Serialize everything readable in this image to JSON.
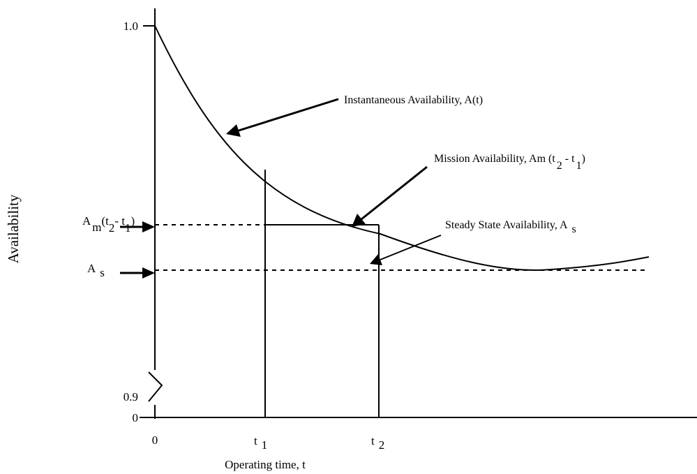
{
  "chart_data": {
    "type": "line",
    "title": "",
    "xlabel": "Operating time, t",
    "ylabel": "Availability",
    "y_ticks": {
      "top": "1.0",
      "mid": "0.9",
      "bottom": "0"
    },
    "x_ticks": {
      "origin": "0",
      "t1": {
        "base": "t",
        "sub": "1"
      },
      "t2": {
        "base": "t",
        "sub": "2"
      }
    },
    "left_markers": {
      "mission": {
        "A": "A",
        "m": "m",
        "open": "(t",
        "two": "2",
        "dash": "- t",
        "one": "1",
        "close": ")"
      },
      "steady": {
        "A": "A",
        "s": "s"
      }
    },
    "annotations": {
      "instantaneous": "Instantaneous Availability, A(t)",
      "mission": {
        "text": "Mission Availability, Am (t",
        "sub2": "2",
        "dash": "- t",
        "sub1": "1",
        "close": ")"
      },
      "steady": {
        "text": "Steady State Availability, A",
        "sub": "s"
      }
    },
    "y_range": [
      0.9,
      1.0
    ],
    "axis_break": true,
    "curves": [
      {
        "name": "Instantaneous Availability, A(t)",
        "shape": "decaying",
        "points": [
          [
            0,
            1.0
          ],
          [
            0.1,
            0.968
          ],
          [
            0.2,
            0.948
          ],
          [
            0.3,
            0.934
          ],
          [
            0.4,
            0.925
          ],
          [
            0.5,
            0.92
          ],
          [
            0.6,
            0.917
          ],
          [
            0.7,
            0.918
          ]
        ]
      },
      {
        "name": "Mission Availability, Am (t2 - t1)",
        "shape": "horizontal",
        "level": 0.934
      },
      {
        "name": "Steady State Availability, As",
        "shape": "horizontal",
        "level": 0.918
      }
    ]
  }
}
